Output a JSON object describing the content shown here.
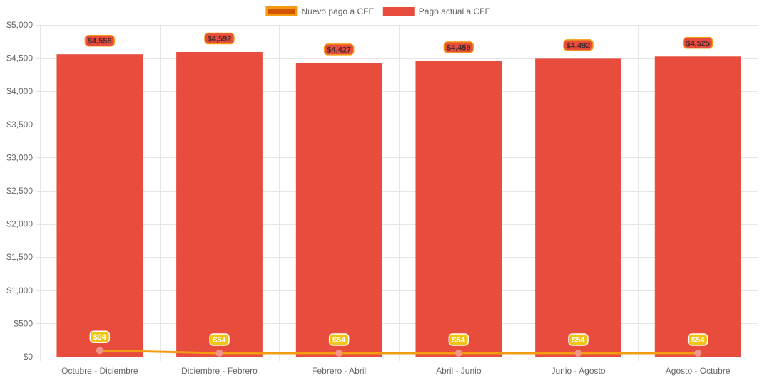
{
  "chart_data": {
    "type": "bar",
    "categories": [
      "Octubre - Diciembre",
      "Diciembre - Febrero",
      "Febrero - Abril",
      "Abril - Junio",
      "Junio - Agosto",
      "Agosto - Octubre"
    ],
    "series": [
      {
        "name": "Nuevo pago a CFE",
        "type": "line",
        "values": [
          94,
          54,
          54,
          54,
          54,
          54
        ],
        "labels": [
          "$94",
          "$54",
          "$54",
          "$54",
          "$54",
          "$54"
        ],
        "color": "#f39c12",
        "legend_fill": "#d35400",
        "point_color": "#f1948a",
        "label_bg": "#f1c40f"
      },
      {
        "name": "Pago actual a CFE",
        "type": "bar",
        "values": [
          4558,
          4592,
          4427,
          4459,
          4492,
          4525
        ],
        "labels": [
          "$4,558",
          "$4,592",
          "$4,427",
          "$4,459",
          "$4,492",
          "$4,525"
        ],
        "color": "#e74c3c",
        "label_border": "#f39c12"
      }
    ],
    "yticks": [
      {
        "value": 0,
        "label": "$0"
      },
      {
        "value": 500,
        "label": "$500"
      },
      {
        "value": 1000,
        "label": "$1,000"
      },
      {
        "value": 1500,
        "label": "$1,500"
      },
      {
        "value": 2000,
        "label": "$2,000"
      },
      {
        "value": 2500,
        "label": "$2,500"
      },
      {
        "value": 3000,
        "label": "$3,000"
      },
      {
        "value": 3500,
        "label": "$3,500"
      },
      {
        "value": 4000,
        "label": "$4,000"
      },
      {
        "value": 4500,
        "label": "$4,500"
      },
      {
        "value": 5000,
        "label": "$5,000"
      }
    ],
    "ylim": [
      0,
      5000
    ],
    "title": "",
    "xlabel": "",
    "ylabel": "",
    "grid": true,
    "legend_position": "top-center"
  }
}
